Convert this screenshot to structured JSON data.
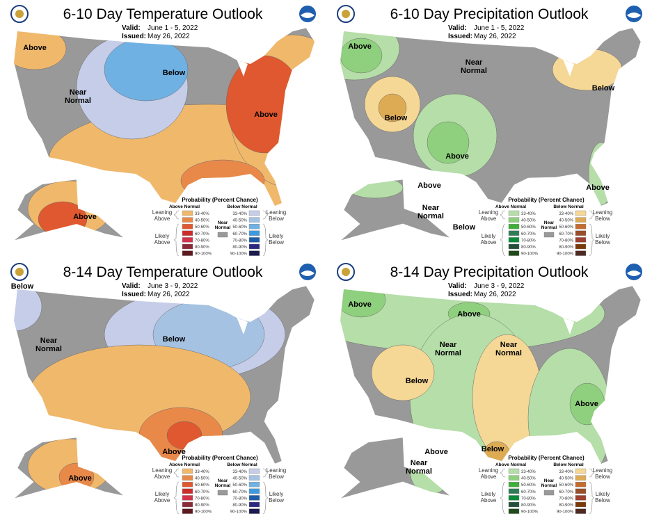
{
  "colors": {
    "near_normal": "#999999",
    "land_outside": "#ffffff",
    "lakes": "#ffffff"
  },
  "legend_temp": {
    "title": "Probability (Percent Chance)",
    "above_header": "Above Normal",
    "below_header": "Below Normal",
    "near_label": [
      "Near",
      "Normal"
    ],
    "leaning_above": [
      "Leaning",
      "Above"
    ],
    "likely_above": [
      "Likely",
      "Above"
    ],
    "leaning_below": [
      "Leaning",
      "Below"
    ],
    "likely_below": [
      "Likely",
      "Below"
    ],
    "ranges": [
      "33-40%",
      "40-50%",
      "50-60%",
      "60-70%",
      "70-80%",
      "80-90%",
      "90-100%"
    ],
    "above_colors": [
      "#f0b86b",
      "#e8894a",
      "#e0582f",
      "#cc2d2a",
      "#d2334a",
      "#8c2a38",
      "#5e1a20"
    ],
    "below_colors": [
      "#c5cde8",
      "#a5c2e2",
      "#6fb1e3",
      "#3e9ae0",
      "#1e5ea8",
      "#2c2a80",
      "#1c1a50"
    ]
  },
  "legend_precip": {
    "title": "Probability (Percent Chance)",
    "above_header": "Above Normal",
    "below_header": "Below Normal",
    "near_label": [
      "Near",
      "Normal"
    ],
    "leaning_above": [
      "Leaning",
      "Above"
    ],
    "likely_above": [
      "Likely",
      "Above"
    ],
    "leaning_below": [
      "Leaning",
      "Below"
    ],
    "likely_below": [
      "Likely",
      "Below"
    ],
    "ranges": [
      "33-40%",
      "40-50%",
      "50-60%",
      "60-70%",
      "70-80%",
      "80-90%",
      "90-100%"
    ],
    "above_colors": [
      "#b5dea8",
      "#8fd07e",
      "#3fae3a",
      "#2f7d56",
      "#0c8a3c",
      "#23503a",
      "#1f4a1a"
    ],
    "below_colors": [
      "#f5d796",
      "#deab55",
      "#c46b2f",
      "#9a4d2a",
      "#9c4030",
      "#7a3a08",
      "#4e2a22"
    ]
  },
  "panels": [
    {
      "title": "6-10 Day Temperature Outlook",
      "valid_label": "Valid:",
      "valid": "June 1 - 5, 2022",
      "issued_label": "Issued:",
      "issued": "May 26, 2022",
      "kind": "temp",
      "regions": [
        [
          "Above"
        ],
        [
          "Below"
        ],
        [
          "Near",
          "Normal"
        ],
        [
          "Above"
        ],
        [
          "Above"
        ]
      ]
    },
    {
      "title": "6-10 Day Precipitation Outlook",
      "valid_label": "Valid:",
      "valid": "June 1 - 5, 2022",
      "issued_label": "Issued:",
      "issued": "May 26, 2022",
      "kind": "precip",
      "regions": [
        [
          "Above"
        ],
        [
          "Near",
          "Normal"
        ],
        [
          "Below"
        ],
        [
          "Below"
        ],
        [
          "Above"
        ],
        [
          "Above"
        ],
        [
          "Above"
        ],
        [
          "Near",
          "Normal"
        ],
        [
          "Below"
        ]
      ]
    },
    {
      "title": "8-14 Day Temperature Outlook",
      "valid_label": "Valid:",
      "valid": "June 3 - 9, 2022",
      "issued_label": "Issued:",
      "issued": "May 26, 2022",
      "kind": "temp",
      "regions": [
        [
          "Below"
        ],
        [
          "Near",
          "Normal"
        ],
        [
          "Below"
        ],
        [
          "Above"
        ],
        [
          "Above"
        ]
      ]
    },
    {
      "title": "8-14 Day Precipitation Outlook",
      "valid_label": "Valid:",
      "valid": "June 3 - 9, 2022",
      "issued_label": "Issued:",
      "issued": "May 26, 2022",
      "kind": "precip",
      "regions": [
        [
          "Above"
        ],
        [
          "Above"
        ],
        [
          "Below"
        ],
        [
          "Near",
          "Normal"
        ],
        [
          "Near",
          "Normal"
        ],
        [
          "Above"
        ],
        [
          "Below"
        ],
        [
          "Above"
        ],
        [
          "Near",
          "Normal"
        ]
      ]
    }
  ]
}
